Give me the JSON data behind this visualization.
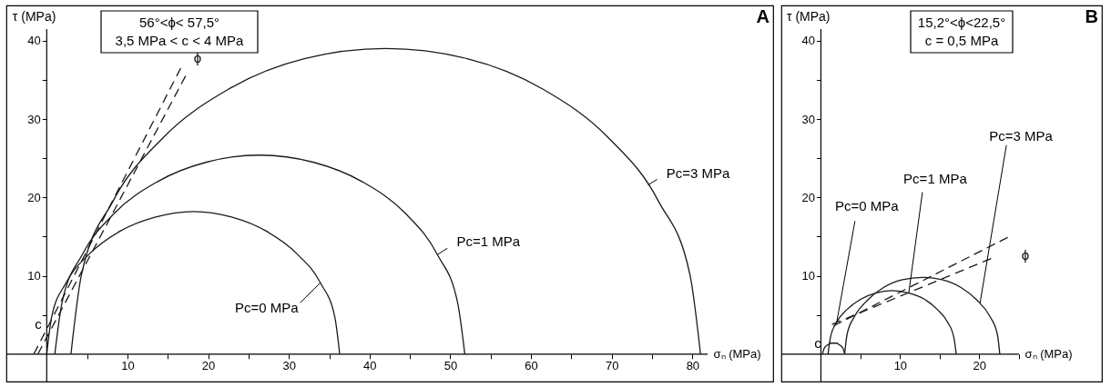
{
  "chart_data": [
    {
      "type": "line",
      "title": "A",
      "xlabel": "σₙ (MPa)",
      "ylabel": "τ (MPa)",
      "xlim": [
        -5,
        90
      ],
      "ylim": [
        -3.5,
        44.5
      ],
      "xticks": [
        {
          "value": 5,
          "label": null
        },
        10,
        {
          "value": 15,
          "label": null
        },
        20,
        {
          "value": 25,
          "label": null
        },
        30,
        {
          "value": 35,
          "label": null
        },
        40,
        {
          "value": 45,
          "label": null
        },
        50,
        {
          "value": 55,
          "label": null
        },
        60,
        {
          "value": 65,
          "label": null
        },
        70,
        {
          "value": 75,
          "label": null
        },
        80
      ],
      "yticks": [
        {
          "value": 5,
          "label": null
        },
        10,
        {
          "value": 15,
          "label": null
        },
        20,
        {
          "value": 25,
          "label": null
        },
        30,
        {
          "value": 35,
          "label": null
        },
        40
      ],
      "grid": false,
      "marker": "none",
      "series": [
        {
          "color": "#1a1a1a",
          "line_style": "solid",
          "x": [
            0,
            0.6,
            2.4,
            5.3,
            9.1,
            13.5,
            18.2,
            22.9,
            27.2,
            31.0,
            33.9,
            35.7,
            36.3
          ],
          "values": [
            0,
            4.7,
            9.1,
            12.8,
            15.7,
            17.5,
            18.2,
            17.5,
            15.7,
            12.8,
            9.1,
            4.7,
            0
          ]
        },
        {
          "color": "#1a1a1a",
          "line_style": "solid",
          "x": [
            1.0,
            1.9,
            4.4,
            8.4,
            13.7,
            19.8,
            26.4,
            33.0,
            39.1,
            44.4,
            48.4,
            50.9,
            51.8
          ],
          "values": [
            0,
            6.6,
            12.7,
            18.0,
            22.0,
            24.5,
            25.4,
            24.5,
            22.0,
            18.0,
            12.7,
            6.6,
            0
          ]
        },
        {
          "color": "#1a1a1a",
          "line_style": "solid",
          "x": [
            3.0,
            4.3,
            8.2,
            14.4,
            22.5,
            31.9,
            42.0,
            52.1,
            61.5,
            69.6,
            75.8,
            79.7,
            81.0
          ],
          "values": [
            0,
            10.1,
            19.5,
            27.6,
            33.8,
            37.7,
            39.0,
            37.7,
            33.8,
            27.6,
            19.5,
            10.1,
            0
          ]
        },
        {
          "color": "#1a1a1a",
          "line_style": "dashed",
          "x": [
            -1.6,
            16.6
          ],
          "values": [
            0,
            36.5
          ]
        },
        {
          "color": "#1a1a1a",
          "line_style": "dashed",
          "x": [
            -1.1,
            17.2
          ],
          "values": [
            0,
            35.5
          ]
        }
      ],
      "annotations": [
        "56°<ϕ< 57,5°",
        "3,5 MPa < c < 4 MPa",
        {
          "text": "Pc=0 MPa",
          "x": 33.9,
          "y": 9.1
        },
        {
          "text": "Pc=1 MPa",
          "x": 48.4,
          "y": 12.7
        },
        {
          "text": "Pc=3 MPa",
          "x": 74.5,
          "y": 21.6
        },
        "ϕ",
        "c"
      ]
    },
    {
      "type": "line",
      "title": "B",
      "xlabel": "σₙ (MPa)",
      "ylabel": "τ (MPa)",
      "xlim": [
        -5,
        35.5
      ],
      "ylim": [
        -3.5,
        44.5
      ],
      "xticks": [
        {
          "value": 5,
          "label": null
        },
        10,
        {
          "value": 15,
          "label": null
        },
        20,
        {
          "value": 25,
          "label": null
        }
      ],
      "yticks": [
        {
          "value": 5,
          "label": null
        },
        10,
        {
          "value": 15,
          "label": null
        },
        20,
        {
          "value": 25,
          "label": null
        },
        30,
        {
          "value": 35,
          "label": null
        },
        40
      ],
      "grid": false,
      "marker": "none",
      "series": [
        {
          "color": "#1a1a1a",
          "line_style": "solid",
          "x": [
            0.2,
            0.3,
            0.4,
            0.6,
            0.9,
            1.2,
            1.6,
            2.0,
            2.3,
            2.6,
            2.8,
            2.9,
            3.0
          ],
          "values": [
            0,
            0.4,
            0.7,
            1.0,
            1.2,
            1.4,
            1.4,
            1.4,
            1.2,
            1.0,
            0.7,
            0.4,
            0
          ]
        },
        {
          "color": "#1a1a1a",
          "line_style": "solid",
          "x": [
            0.9,
            1.2,
            2.0,
            3.3,
            5.0,
            6.9,
            9.0,
            11.1,
            13.1,
            14.7,
            16.0,
            16.8,
            17.1
          ],
          "values": [
            0,
            2.1,
            4.1,
            5.7,
            7.0,
            7.8,
            8.1,
            7.8,
            7.0,
            5.7,
            4.1,
            2.1,
            0
          ]
        },
        {
          "color": "#1a1a1a",
          "line_style": "solid",
          "x": [
            3.0,
            3.3,
            4.3,
            5.9,
            7.9,
            10.3,
            12.8,
            15.3,
            17.7,
            19.7,
            21.3,
            22.3,
            22.6
          ],
          "values": [
            0,
            2.5,
            4.9,
            6.9,
            8.5,
            9.5,
            9.8,
            9.5,
            8.5,
            6.9,
            4.9,
            2.5,
            0
          ]
        },
        {
          "color": "#1a1a1a",
          "line_style": "dashed",
          "x": [
            1.6,
            23.6
          ],
          "values": [
            3.6,
            14.9
          ]
        },
        {
          "color": "#1a1a1a",
          "line_style": "dashed",
          "x": [
            1.4,
            21.5
          ],
          "values": [
            3.8,
            12.2
          ]
        }
      ],
      "annotations": [
        "15,2°<ϕ<22,5°",
        "c = 0,5 MPa",
        {
          "text": "Pc=0 MPa",
          "x": 2.0,
          "y": 4.1
        },
        {
          "text": "Pc=1 MPa",
          "x": 11.1,
          "y": 7.8
        },
        {
          "text": "Pc=3 MPa",
          "x": 20.1,
          "y": 6.5
        },
        "ϕ",
        "c"
      ]
    }
  ]
}
